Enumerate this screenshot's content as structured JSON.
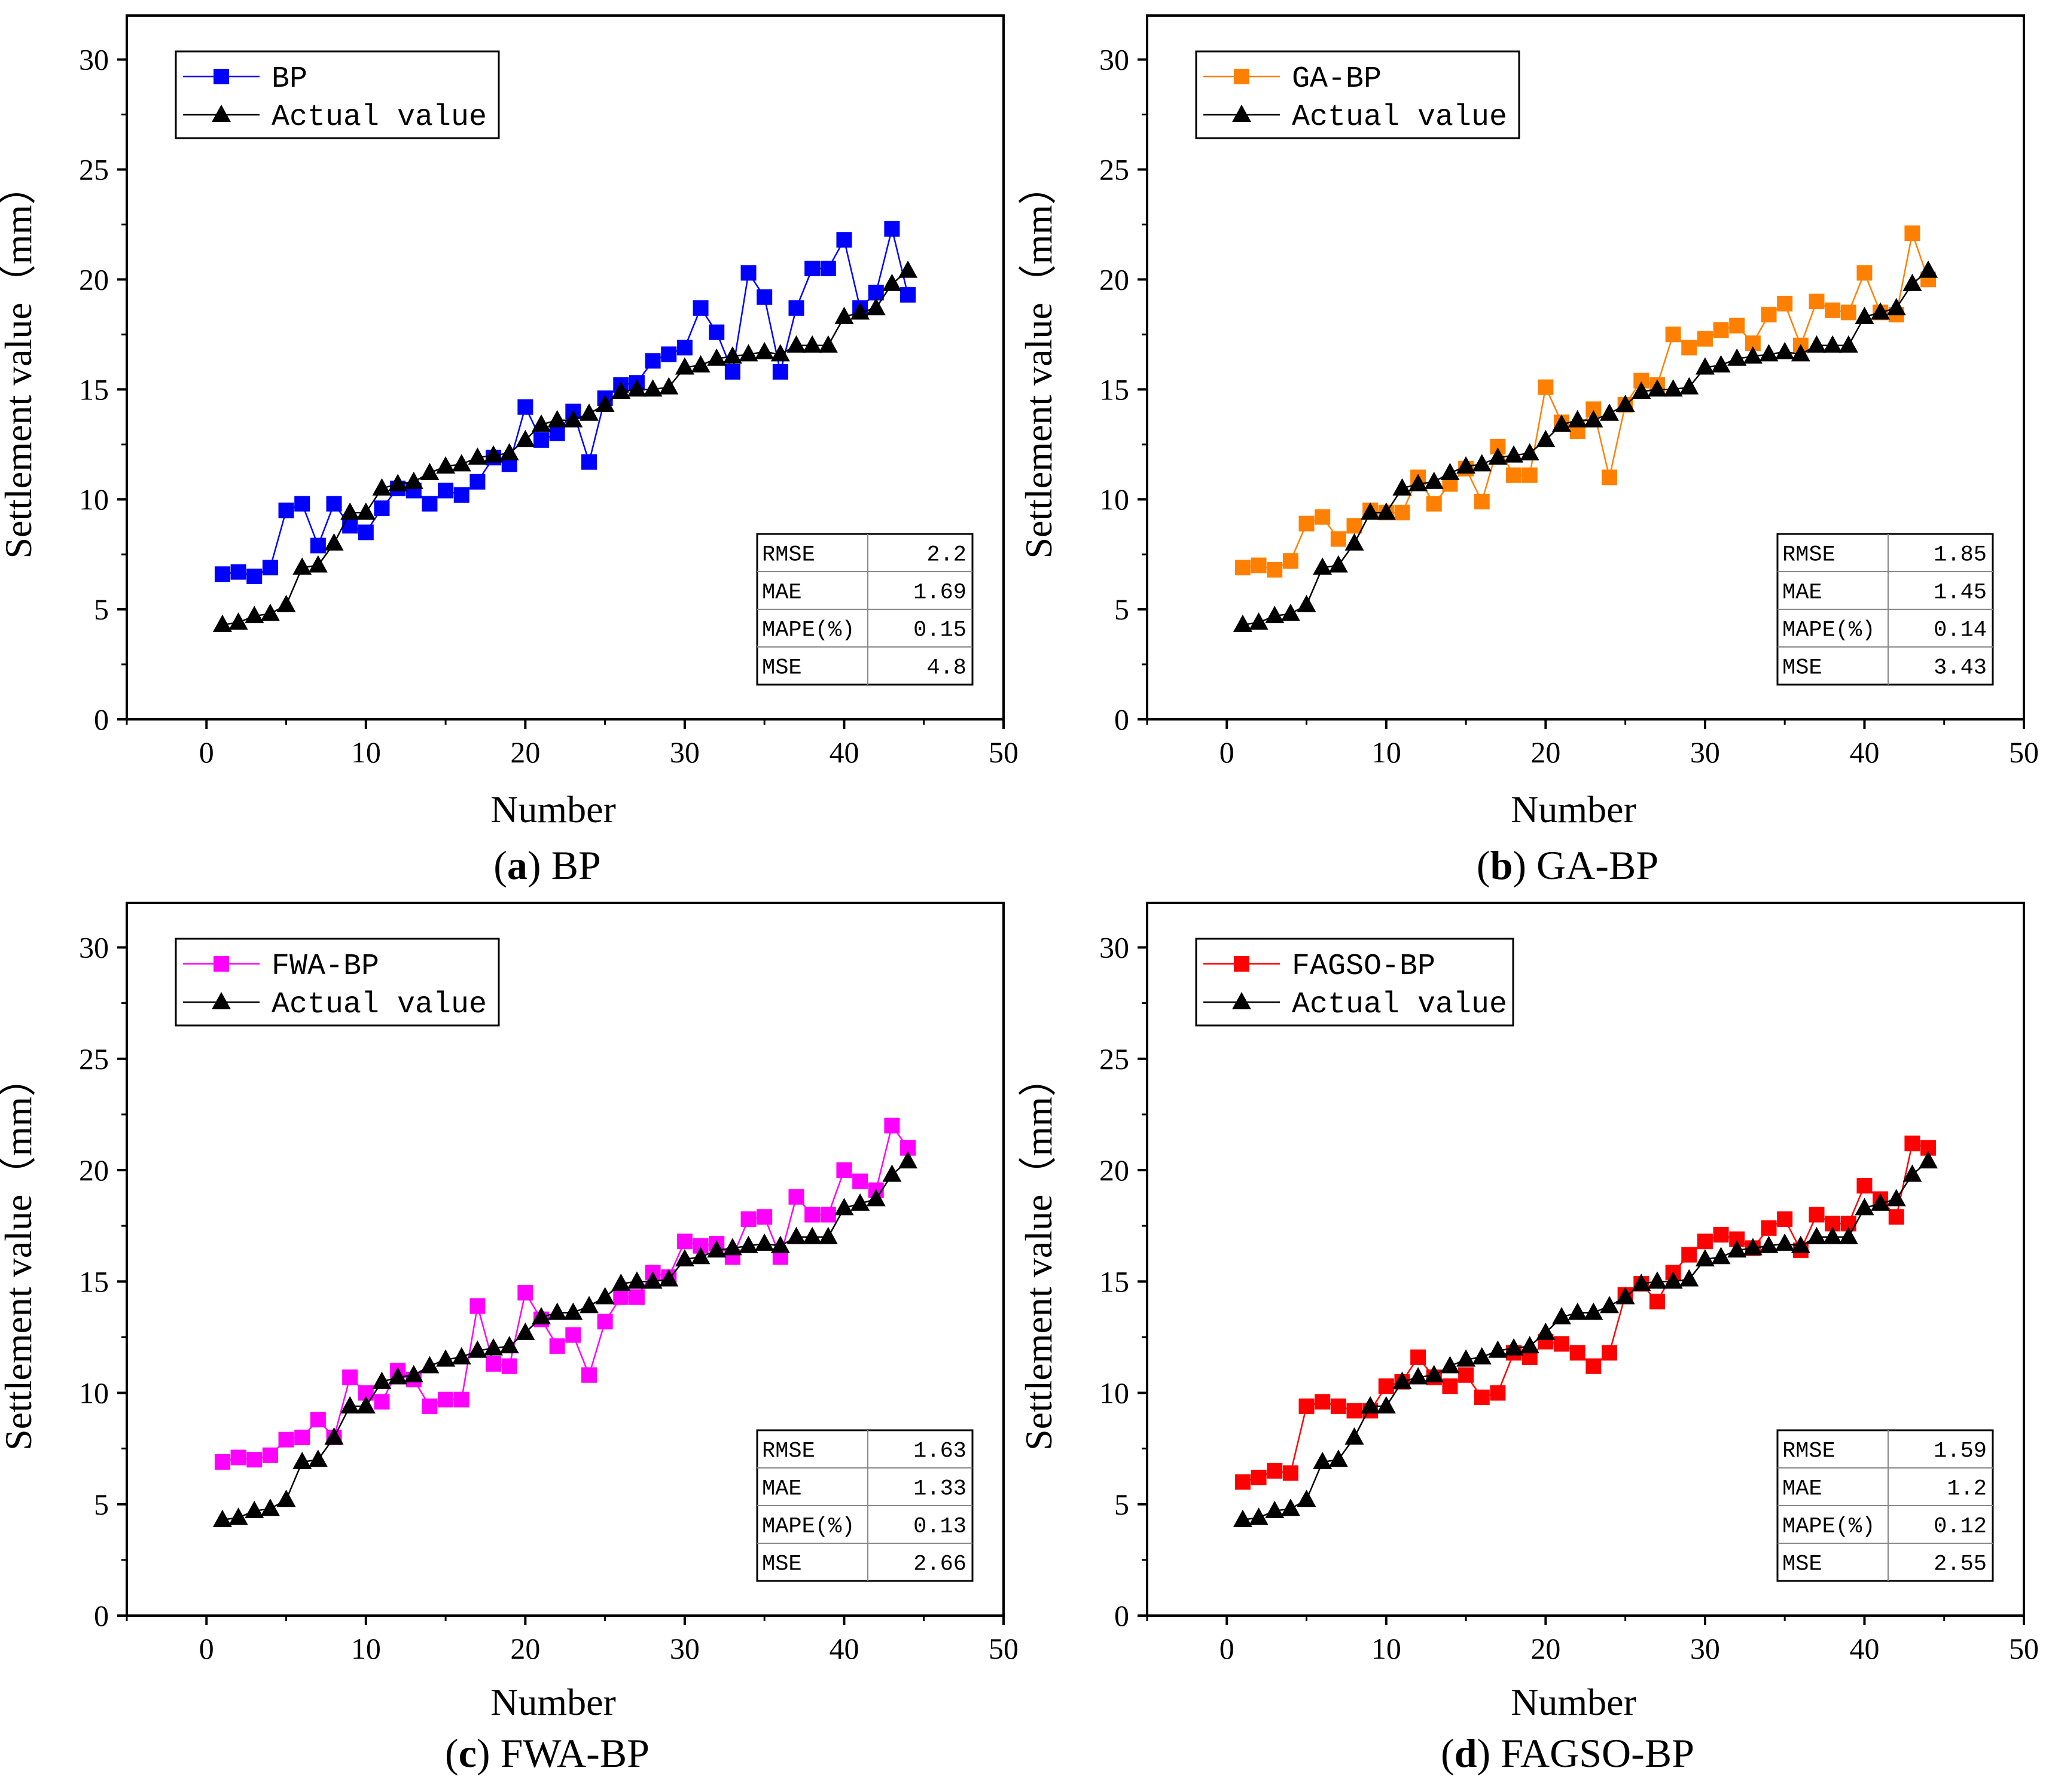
{
  "colors": {
    "actual": "#000000",
    "axis": "#000000"
  },
  "chart_data": [
    {
      "type": "line",
      "title": "BP",
      "caption": {
        "open": "(",
        "letter": "a",
        "close": ")",
        "text": " BP"
      },
      "xlabel": "Number",
      "ylabel": "Settlement value（mm）",
      "xlim": [
        -5,
        50
      ],
      "ylim": [
        0,
        32
      ],
      "xticks": [
        0,
        10,
        20,
        30,
        40,
        50
      ],
      "yticks": [
        0,
        5,
        10,
        15,
        20,
        25,
        30
      ],
      "legend": {
        "placement": "top-left"
      },
      "series": [
        {
          "name": "BP",
          "color": "#0000ff",
          "marker": "square",
          "values": [
            6.6,
            6.7,
            6.5,
            6.9,
            9.5,
            9.8,
            7.9,
            9.8,
            8.8,
            8.5,
            9.6,
            10.5,
            10.4,
            9.8,
            10.4,
            10.2,
            10.8,
            11.9,
            11.6,
            14.2,
            12.7,
            13.0,
            14.0,
            11.7,
            14.6,
            15.2,
            15.3,
            16.3,
            16.6,
            16.9,
            18.7,
            17.6,
            15.8,
            20.3,
            19.2,
            15.8,
            18.7,
            20.5,
            20.5,
            21.8,
            18.7,
            19.4,
            22.3,
            19.3
          ]
        },
        {
          "name": "Actual value",
          "color": "#000000",
          "marker": "triangle",
          "values": [
            4.3,
            4.4,
            4.7,
            4.8,
            5.2,
            6.9,
            7.0,
            8.0,
            9.4,
            9.4,
            10.5,
            10.7,
            10.8,
            11.2,
            11.5,
            11.6,
            11.9,
            12.0,
            12.1,
            12.7,
            13.4,
            13.6,
            13.6,
            13.9,
            14.3,
            14.9,
            15.0,
            15.0,
            15.1,
            16.0,
            16.1,
            16.4,
            16.5,
            16.6,
            16.7,
            16.6,
            17.0,
            17.0,
            17.0,
            18.3,
            18.5,
            18.7,
            19.8,
            20.4
          ]
        }
      ],
      "metrics": [
        {
          "label": "RMSE",
          "value": "2.2"
        },
        {
          "label": "MAE",
          "value": "1.69"
        },
        {
          "label": "MAPE(%)",
          "value": "0.15"
        },
        {
          "label": "MSE",
          "value": "4.8"
        }
      ]
    },
    {
      "type": "line",
      "title": "GA-BP",
      "caption": {
        "open": "(",
        "letter": "b",
        "close": ")",
        "text": " GA-BP"
      },
      "xlabel": "Number",
      "ylabel": "Settlement value（mm）",
      "xlim": [
        -5,
        50
      ],
      "ylim": [
        0,
        32
      ],
      "xticks": [
        0,
        10,
        20,
        30,
        40,
        50
      ],
      "yticks": [
        0,
        5,
        10,
        15,
        20,
        25,
        30
      ],
      "legend": {
        "placement": "top-left"
      },
      "series": [
        {
          "name": "GA-BP",
          "color": "#ff8000",
          "marker": "square",
          "values": [
            6.9,
            7.0,
            6.8,
            7.2,
            8.9,
            9.2,
            8.2,
            8.8,
            9.5,
            9.4,
            9.4,
            11.0,
            9.8,
            10.7,
            11.4,
            9.9,
            12.4,
            11.1,
            11.1,
            15.1,
            13.5,
            13.1,
            14.1,
            11.0,
            14.3,
            15.4,
            15.2,
            17.5,
            16.9,
            17.3,
            17.7,
            17.9,
            17.1,
            18.4,
            18.9,
            17.0,
            19.0,
            18.6,
            18.5,
            20.3,
            18.5,
            18.4,
            22.1,
            20.0
          ]
        },
        {
          "name": "Actual value",
          "color": "#000000",
          "marker": "triangle",
          "values": [
            4.3,
            4.4,
            4.7,
            4.8,
            5.2,
            6.9,
            7.0,
            8.0,
            9.4,
            9.4,
            10.5,
            10.7,
            10.8,
            11.2,
            11.5,
            11.6,
            11.9,
            12.0,
            12.1,
            12.7,
            13.4,
            13.6,
            13.6,
            13.9,
            14.3,
            14.9,
            15.0,
            15.0,
            15.1,
            16.0,
            16.1,
            16.4,
            16.5,
            16.6,
            16.7,
            16.6,
            17.0,
            17.0,
            17.0,
            18.3,
            18.5,
            18.7,
            19.8,
            20.4
          ]
        }
      ],
      "metrics": [
        {
          "label": "RMSE",
          "value": "1.85"
        },
        {
          "label": "MAE",
          "value": "1.45"
        },
        {
          "label": "MAPE(%)",
          "value": "0.14"
        },
        {
          "label": "MSE",
          "value": "3.43"
        }
      ]
    },
    {
      "type": "line",
      "title": "FWA-BP",
      "caption": {
        "open": "(",
        "letter": "c",
        "close": ")",
        "text": " FWA-BP"
      },
      "xlabel": "Number",
      "ylabel": "Settlement value（mm）",
      "xlim": [
        -5,
        50
      ],
      "ylim": [
        0,
        32
      ],
      "xticks": [
        0,
        10,
        20,
        30,
        40,
        50
      ],
      "yticks": [
        0,
        5,
        10,
        15,
        20,
        25,
        30
      ],
      "legend": {
        "placement": "top-left"
      },
      "series": [
        {
          "name": "FWA-BP",
          "color": "#ff00ff",
          "marker": "square",
          "values": [
            6.9,
            7.1,
            7.0,
            7.2,
            7.9,
            8.0,
            8.8,
            8.0,
            10.7,
            10.0,
            9.6,
            11.0,
            10.6,
            9.4,
            9.7,
            9.7,
            13.9,
            11.3,
            11.2,
            14.5,
            13.3,
            12.1,
            12.6,
            10.8,
            13.2,
            14.3,
            14.3,
            15.4,
            15.2,
            16.8,
            16.6,
            16.7,
            16.1,
            17.8,
            17.9,
            16.1,
            18.8,
            18.0,
            18.0,
            20.0,
            19.5,
            19.1,
            22.0,
            21.0
          ]
        },
        {
          "name": "Actual value",
          "color": "#000000",
          "marker": "triangle",
          "values": [
            4.3,
            4.4,
            4.7,
            4.8,
            5.2,
            6.9,
            7.0,
            8.0,
            9.4,
            9.4,
            10.5,
            10.7,
            10.8,
            11.2,
            11.5,
            11.6,
            11.9,
            12.0,
            12.1,
            12.7,
            13.4,
            13.6,
            13.6,
            13.9,
            14.3,
            14.9,
            15.0,
            15.0,
            15.1,
            16.0,
            16.1,
            16.4,
            16.5,
            16.6,
            16.7,
            16.6,
            17.0,
            17.0,
            17.0,
            18.3,
            18.5,
            18.7,
            19.8,
            20.4
          ]
        }
      ],
      "metrics": [
        {
          "label": "RMSE",
          "value": "1.63"
        },
        {
          "label": "MAE",
          "value": "1.33"
        },
        {
          "label": "MAPE(%)",
          "value": "0.13"
        },
        {
          "label": "MSE",
          "value": "2.66"
        }
      ]
    },
    {
      "type": "line",
      "title": "FAGSO-BP",
      "caption": {
        "open": "(",
        "letter": "d",
        "close": ")",
        "text": " FAGSO-BP"
      },
      "xlabel": "Number",
      "ylabel": "Settlement value（mm）",
      "xlim": [
        -5,
        50
      ],
      "ylim": [
        0,
        32
      ],
      "xticks": [
        0,
        10,
        20,
        30,
        40,
        50
      ],
      "yticks": [
        0,
        5,
        10,
        15,
        20,
        25,
        30
      ],
      "legend": {
        "placement": "top-left"
      },
      "series": [
        {
          "name": "FAGSO-BP",
          "color": "#ff0000",
          "marker": "square",
          "values": [
            6.0,
            6.2,
            6.5,
            6.4,
            9.4,
            9.6,
            9.4,
            9.2,
            9.2,
            10.3,
            10.5,
            11.6,
            10.7,
            10.3,
            10.8,
            9.8,
            10.0,
            11.8,
            11.6,
            12.3,
            12.2,
            11.8,
            11.2,
            11.8,
            14.4,
            14.9,
            14.1,
            15.4,
            16.2,
            16.8,
            17.1,
            16.9,
            16.5,
            17.4,
            17.8,
            16.4,
            18.0,
            17.6,
            17.6,
            19.3,
            18.7,
            17.9,
            21.2,
            21.0
          ]
        },
        {
          "name": "Actual value",
          "color": "#000000",
          "marker": "triangle",
          "values": [
            4.3,
            4.4,
            4.7,
            4.8,
            5.2,
            6.9,
            7.0,
            8.0,
            9.4,
            9.4,
            10.5,
            10.7,
            10.8,
            11.2,
            11.5,
            11.6,
            11.9,
            12.0,
            12.1,
            12.7,
            13.4,
            13.6,
            13.6,
            13.9,
            14.3,
            14.9,
            15.0,
            15.0,
            15.1,
            16.0,
            16.1,
            16.4,
            16.5,
            16.6,
            16.7,
            16.6,
            17.0,
            17.0,
            17.0,
            18.3,
            18.5,
            18.7,
            19.8,
            20.4
          ]
        }
      ],
      "metrics": [
        {
          "label": "RMSE",
          "value": "1.59"
        },
        {
          "label": "MAE",
          "value": "1.2"
        },
        {
          "label": "MAPE(%)",
          "value": "0.12"
        },
        {
          "label": "MSE",
          "value": "2.55"
        }
      ]
    }
  ]
}
